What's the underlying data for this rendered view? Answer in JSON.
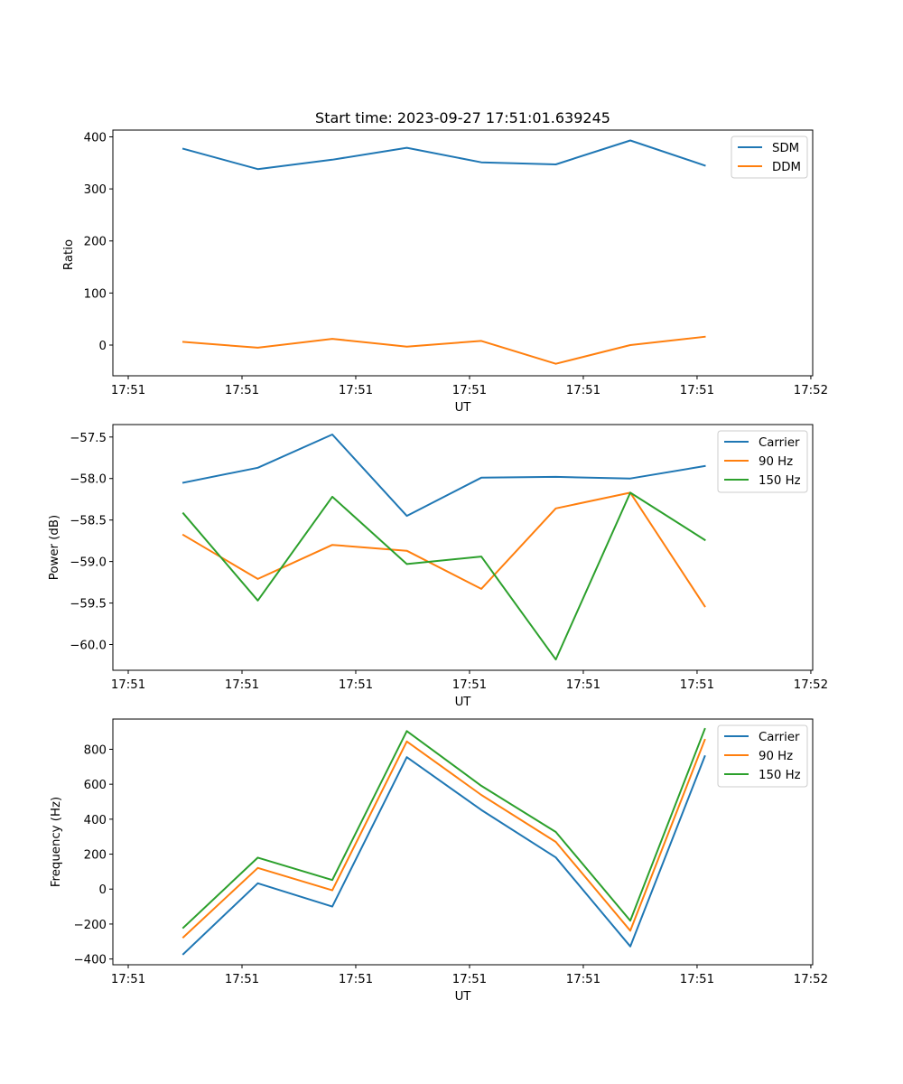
{
  "chart_data": [
    {
      "type": "line",
      "title": "Start time: 2023-09-27 17:51:01.639245",
      "xlabel": "UT",
      "ylabel": "Ratio",
      "x": [
        0,
        1,
        2,
        3,
        4,
        5,
        6,
        7
      ],
      "xlim": [
        -0.945,
        8.448
      ],
      "xticks": [
        -0.739,
        0.788,
        2.315,
        3.842,
        5.369,
        6.896,
        8.423
      ],
      "xtick_labels": [
        "17:51",
        "17:51",
        "17:51",
        "17:51",
        "17:51",
        "17:51",
        "17:52"
      ],
      "ylim": [
        -59,
        413
      ],
      "yticks": [
        0,
        100,
        200,
        300,
        400
      ],
      "ytick_labels": [
        "0",
        "100",
        "200",
        "300",
        "400"
      ],
      "legend": "top-right",
      "grid": false,
      "series": [
        {
          "name": "SDM",
          "color": "#1f77b4",
          "values": [
            377,
            338,
            356,
            379,
            351,
            347,
            393,
            345
          ]
        },
        {
          "name": "DDM",
          "color": "#ff7f0e",
          "values": [
            6,
            -5,
            12,
            -3,
            8,
            -36,
            0,
            16
          ]
        }
      ]
    },
    {
      "type": "line",
      "title": "",
      "xlabel": "UT",
      "ylabel": "Power (dB)",
      "x": [
        0,
        1,
        2,
        3,
        4,
        5,
        6,
        7
      ],
      "xlim": [
        -0.945,
        8.448
      ],
      "xticks": [
        -0.739,
        0.788,
        2.315,
        3.842,
        5.369,
        6.896,
        8.423
      ],
      "xtick_labels": [
        "17:51",
        "17:51",
        "17:51",
        "17:51",
        "17:51",
        "17:51",
        "17:52"
      ],
      "ylim": [
        -60.31,
        -57.35
      ],
      "yticks": [
        -60.0,
        -59.5,
        -59.0,
        -58.5,
        -58.0,
        -57.5
      ],
      "ytick_labels": [
        "−60.0",
        "−59.5",
        "−59.0",
        "−58.5",
        "−58.0",
        "−57.5"
      ],
      "legend": "top-right",
      "grid": false,
      "series": [
        {
          "name": "Carrier",
          "color": "#1f77b4",
          "values": [
            -58.05,
            -57.87,
            -57.47,
            -58.45,
            -57.99,
            -57.98,
            -58.0,
            -57.85
          ]
        },
        {
          "name": "90 Hz",
          "color": "#ff7f0e",
          "values": [
            -58.68,
            -59.21,
            -58.8,
            -58.87,
            -59.33,
            -58.36,
            -58.17,
            -59.54
          ]
        },
        {
          "name": "150 Hz",
          "color": "#2ca02c",
          "values": [
            -58.42,
            -59.47,
            -58.22,
            -59.03,
            -58.94,
            -60.18,
            -58.17,
            -58.74
          ]
        }
      ]
    },
    {
      "type": "line",
      "title": "",
      "xlabel": "UT",
      "ylabel": "Frequency (Hz)",
      "x": [
        0,
        1,
        2,
        3,
        4,
        5,
        6,
        7
      ],
      "xlim": [
        -0.945,
        8.448
      ],
      "xticks": [
        -0.739,
        0.788,
        2.315,
        3.842,
        5.369,
        6.896,
        8.423
      ],
      "xtick_labels": [
        "17:51",
        "17:51",
        "17:51",
        "17:51",
        "17:51",
        "17:51",
        "17:52"
      ],
      "ylim": [
        -433,
        973
      ],
      "yticks": [
        -400,
        -200,
        0,
        200,
        400,
        600,
        800
      ],
      "ytick_labels": [
        "−400",
        "−200",
        "0",
        "200",
        "400",
        "600",
        "800"
      ],
      "legend": "top-right",
      "grid": false,
      "series": [
        {
          "name": "Carrier",
          "color": "#1f77b4",
          "values": [
            -372,
            33,
            -100,
            755,
            453,
            181,
            -328,
            760
          ]
        },
        {
          "name": "90 Hz",
          "color": "#ff7f0e",
          "values": [
            -276,
            121,
            -7,
            845,
            539,
            270,
            -238,
            854
          ]
        },
        {
          "name": "150 Hz",
          "color": "#2ca02c",
          "values": [
            -221,
            180,
            52,
            904,
            591,
            327,
            -181,
            916
          ]
        }
      ]
    }
  ]
}
